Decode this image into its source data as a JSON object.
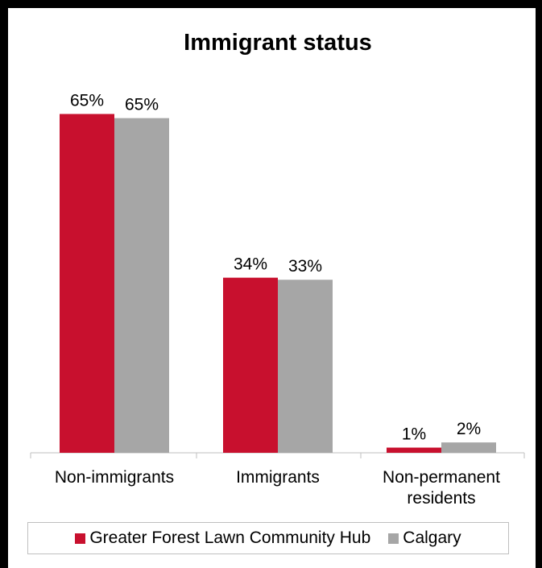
{
  "colors": {
    "series_1": "#c8102e",
    "series_2": "#a6a6a6",
    "axis": "#bfbfbf",
    "legend_border": "#bfbfbf"
  },
  "chart_data": {
    "type": "bar",
    "title": "Immigrant status",
    "categories": [
      "Non-immigrants",
      "Immigrants",
      "Non-permanent residents"
    ],
    "category_lines": [
      [
        "Non-immigrants"
      ],
      [
        "Immigrants"
      ],
      [
        "Non-permanent",
        "residents"
      ]
    ],
    "series": [
      {
        "name": "Greater Forest Lawn Community Hub",
        "values": [
          65.4,
          33.8,
          1.0
        ],
        "labels": [
          "65%",
          "34%",
          "1%"
        ]
      },
      {
        "name": "Calgary",
        "values": [
          64.6,
          33.4,
          2.0
        ],
        "labels": [
          "65%",
          "33%",
          "2%"
        ]
      }
    ],
    "ylim": [
      0,
      70
    ],
    "grid": false,
    "legend_position": "bottom"
  }
}
